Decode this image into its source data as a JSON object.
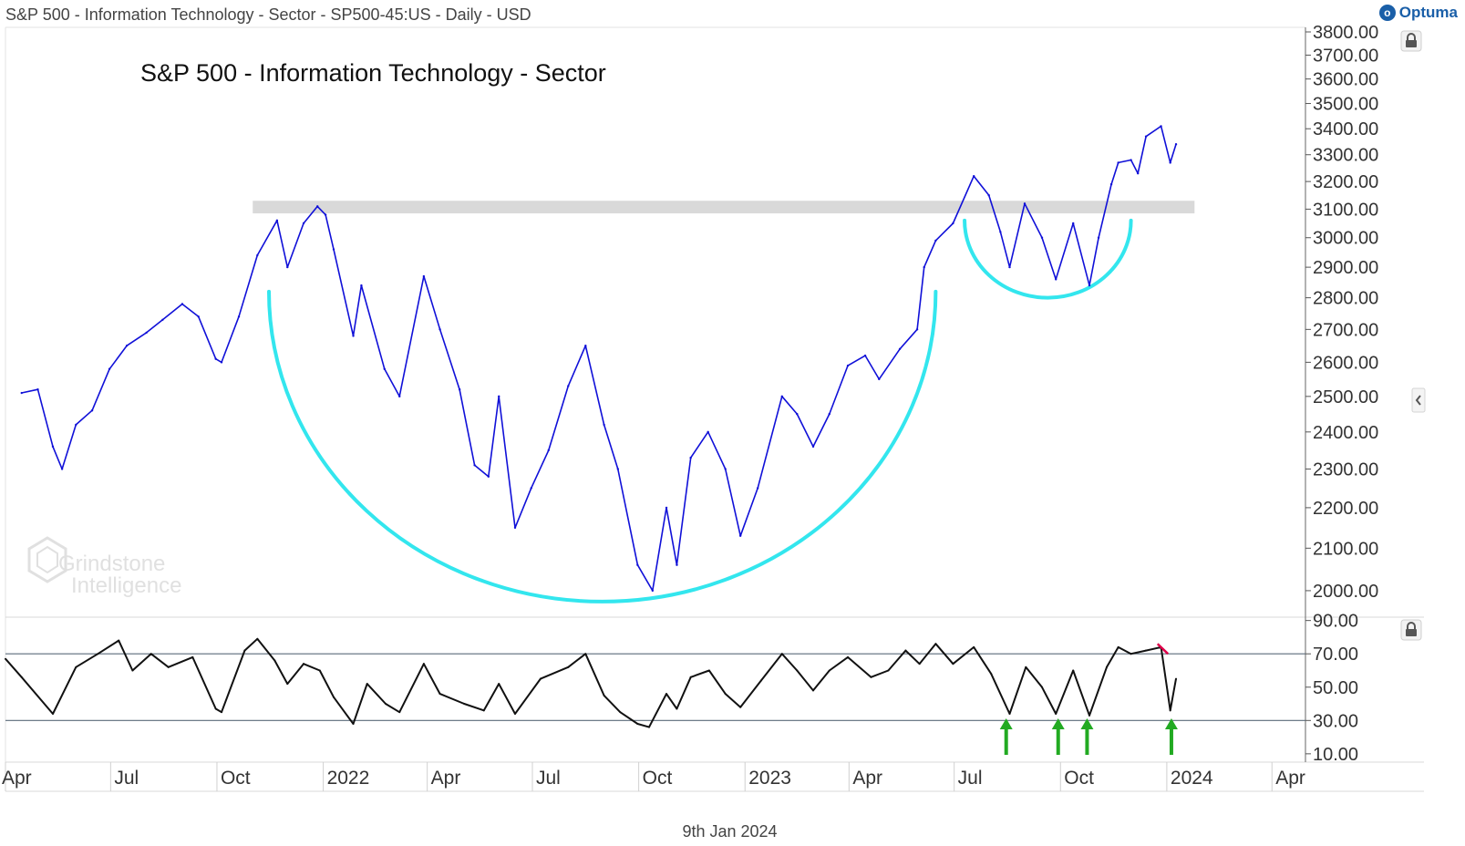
{
  "header": {
    "title": "S&P 500 - Information Technology - Sector - SP500-45:US - Daily - USD",
    "brand": "Optuma",
    "brand_logo_icon": "optuma-logo-icon"
  },
  "footer_date": "9th Jan 2024",
  "watermark": {
    "line1": "Grindstone",
    "line2": "Intelligence"
  },
  "colors": {
    "price": "#1010d8",
    "cup": "#33e6ee",
    "resistance": "#d9d9d9",
    "rsi": "#111111",
    "rsi_levels": "#5a6a7a",
    "arrows": "#22aa22",
    "divergence": "#e0004a"
  },
  "chart_data": [
    {
      "type": "line",
      "title": "S&P 500 - Information Technology - Sector",
      "series": [
        {
          "values": [
            {
              "x": "2021-04-15",
              "y": 2510
            },
            {
              "x": "2021-04-29",
              "y": 2520
            },
            {
              "x": "2021-05-12",
              "y": 2360
            },
            {
              "x": "2021-05-20",
              "y": 2300
            },
            {
              "x": "2021-06-01",
              "y": 2420
            },
            {
              "x": "2021-06-15",
              "y": 2460
            },
            {
              "x": "2021-06-30",
              "y": 2580
            },
            {
              "x": "2021-07-15",
              "y": 2650
            },
            {
              "x": "2021-08-01",
              "y": 2690
            },
            {
              "x": "2021-08-15",
              "y": 2730
            },
            {
              "x": "2021-09-01",
              "y": 2780
            },
            {
              "x": "2021-09-15",
              "y": 2740
            },
            {
              "x": "2021-09-30",
              "y": 2610
            },
            {
              "x": "2021-10-05",
              "y": 2600
            },
            {
              "x": "2021-10-20",
              "y": 2740
            },
            {
              "x": "2021-11-05",
              "y": 2940
            },
            {
              "x": "2021-11-22",
              "y": 3060
            },
            {
              "x": "2021-12-01",
              "y": 2900
            },
            {
              "x": "2021-12-15",
              "y": 3050
            },
            {
              "x": "2021-12-27",
              "y": 3110
            },
            {
              "x": "2022-01-03",
              "y": 3080
            },
            {
              "x": "2022-01-10",
              "y": 2960
            },
            {
              "x": "2022-01-27",
              "y": 2680
            },
            {
              "x": "2022-02-03",
              "y": 2840
            },
            {
              "x": "2022-02-23",
              "y": 2580
            },
            {
              "x": "2022-03-08",
              "y": 2500
            },
            {
              "x": "2022-03-29",
              "y": 2870
            },
            {
              "x": "2022-04-12",
              "y": 2700
            },
            {
              "x": "2022-04-29",
              "y": 2520
            },
            {
              "x": "2022-05-12",
              "y": 2310
            },
            {
              "x": "2022-05-24",
              "y": 2280
            },
            {
              "x": "2022-06-02",
              "y": 2500
            },
            {
              "x": "2022-06-16",
              "y": 2150
            },
            {
              "x": "2022-06-30",
              "y": 2250
            },
            {
              "x": "2022-07-15",
              "y": 2350
            },
            {
              "x": "2022-08-01",
              "y": 2530
            },
            {
              "x": "2022-08-16",
              "y": 2650
            },
            {
              "x": "2022-09-01",
              "y": 2420
            },
            {
              "x": "2022-09-13",
              "y": 2300
            },
            {
              "x": "2022-09-30",
              "y": 2060
            },
            {
              "x": "2022-10-13",
              "y": 2000
            },
            {
              "x": "2022-10-25",
              "y": 2200
            },
            {
              "x": "2022-11-03",
              "y": 2060
            },
            {
              "x": "2022-11-15",
              "y": 2330
            },
            {
              "x": "2022-11-30",
              "y": 2400
            },
            {
              "x": "2022-12-15",
              "y": 2300
            },
            {
              "x": "2022-12-28",
              "y": 2130
            },
            {
              "x": "2023-01-12",
              "y": 2250
            },
            {
              "x": "2023-02-02",
              "y": 2500
            },
            {
              "x": "2023-02-15",
              "y": 2450
            },
            {
              "x": "2023-03-01",
              "y": 2360
            },
            {
              "x": "2023-03-15",
              "y": 2450
            },
            {
              "x": "2023-03-31",
              "y": 2590
            },
            {
              "x": "2023-04-15",
              "y": 2620
            },
            {
              "x": "2023-04-27",
              "y": 2550
            },
            {
              "x": "2023-05-15",
              "y": 2640
            },
            {
              "x": "2023-05-30",
              "y": 2700
            },
            {
              "x": "2023-06-05",
              "y": 2900
            },
            {
              "x": "2023-06-15",
              "y": 2990
            },
            {
              "x": "2023-06-30",
              "y": 3050
            },
            {
              "x": "2023-07-18",
              "y": 3220
            },
            {
              "x": "2023-07-31",
              "y": 3150
            },
            {
              "x": "2023-08-10",
              "y": 3020
            },
            {
              "x": "2023-08-18",
              "y": 2900
            },
            {
              "x": "2023-08-31",
              "y": 3120
            },
            {
              "x": "2023-09-15",
              "y": 3000
            },
            {
              "x": "2023-09-27",
              "y": 2860
            },
            {
              "x": "2023-10-12",
              "y": 3050
            },
            {
              "x": "2023-10-26",
              "y": 2840
            },
            {
              "x": "2023-11-03",
              "y": 3000
            },
            {
              "x": "2023-11-14",
              "y": 3190
            },
            {
              "x": "2023-11-20",
              "y": 3270
            },
            {
              "x": "2023-12-01",
              "y": 3280
            },
            {
              "x": "2023-12-07",
              "y": 3230
            },
            {
              "x": "2023-12-14",
              "y": 3370
            },
            {
              "x": "2023-12-27",
              "y": 3410
            },
            {
              "x": "2024-01-04",
              "y": 3270
            },
            {
              "x": "2024-01-09",
              "y": 3340
            }
          ]
        }
      ],
      "x_ticks": [
        "Apr",
        "Jul",
        "Oct",
        "2022",
        "Apr",
        "Jul",
        "Oct",
        "2023",
        "Apr",
        "Jul",
        "Oct",
        "2024",
        "Apr"
      ],
      "y_ticks": [
        "3800.00",
        "3700.00",
        "3600.00",
        "3500.00",
        "3400.00",
        "3300.00",
        "3200.00",
        "3100.00",
        "3000.00",
        "2900.00",
        "2800.00",
        "2700.00",
        "2600.00",
        "2500.00",
        "2400.00",
        "2300.00",
        "2200.00",
        "2100.00",
        "2000.00"
      ],
      "y_scale": "log",
      "ylim": [
        1940,
        3820
      ],
      "xlim": [
        "2021-04-01",
        "2024-04-30"
      ],
      "grid": false,
      "annotations": {
        "resistance_band": {
          "y": [
            3085,
            3130
          ],
          "x": [
            "2021-11-01",
            "2024-01-25"
          ]
        },
        "large_cup": {
          "x": [
            "2021-11-15",
            "2023-06-15"
          ],
          "top_y": 2820,
          "bottom_y": 1975
        },
        "small_cup": {
          "x": [
            "2023-07-10",
            "2023-12-01"
          ],
          "top_y": 3060,
          "bottom_y": 2800
        }
      }
    },
    {
      "type": "line",
      "series": [
        {
          "values": [
            {
              "x": "2021-04-01",
              "y": 67
            },
            {
              "x": "2021-04-15",
              "y": 56
            },
            {
              "x": "2021-05-12",
              "y": 34
            },
            {
              "x": "2021-06-01",
              "y": 62
            },
            {
              "x": "2021-06-20",
              "y": 70
            },
            {
              "x": "2021-07-08",
              "y": 78
            },
            {
              "x": "2021-07-20",
              "y": 60
            },
            {
              "x": "2021-08-05",
              "y": 70
            },
            {
              "x": "2021-08-20",
              "y": 62
            },
            {
              "x": "2021-09-10",
              "y": 68
            },
            {
              "x": "2021-09-30",
              "y": 37
            },
            {
              "x": "2021-10-05",
              "y": 35
            },
            {
              "x": "2021-10-25",
              "y": 72
            },
            {
              "x": "2021-11-05",
              "y": 79
            },
            {
              "x": "2021-11-20",
              "y": 66
            },
            {
              "x": "2021-12-01",
              "y": 52
            },
            {
              "x": "2021-12-15",
              "y": 64
            },
            {
              "x": "2021-12-29",
              "y": 60
            },
            {
              "x": "2022-01-10",
              "y": 44
            },
            {
              "x": "2022-01-27",
              "y": 28
            },
            {
              "x": "2022-02-08",
              "y": 52
            },
            {
              "x": "2022-02-24",
              "y": 40
            },
            {
              "x": "2022-03-08",
              "y": 35
            },
            {
              "x": "2022-03-29",
              "y": 64
            },
            {
              "x": "2022-04-12",
              "y": 46
            },
            {
              "x": "2022-05-03",
              "y": 40
            },
            {
              "x": "2022-05-20",
              "y": 36
            },
            {
              "x": "2022-06-02",
              "y": 52
            },
            {
              "x": "2022-06-16",
              "y": 34
            },
            {
              "x": "2022-07-08",
              "y": 55
            },
            {
              "x": "2022-08-01",
              "y": 62
            },
            {
              "x": "2022-08-16",
              "y": 70
            },
            {
              "x": "2022-09-01",
              "y": 45
            },
            {
              "x": "2022-09-15",
              "y": 35
            },
            {
              "x": "2022-09-30",
              "y": 28
            },
            {
              "x": "2022-10-10",
              "y": 26
            },
            {
              "x": "2022-10-25",
              "y": 46
            },
            {
              "x": "2022-11-03",
              "y": 37
            },
            {
              "x": "2022-11-15",
              "y": 56
            },
            {
              "x": "2022-12-01",
              "y": 60
            },
            {
              "x": "2022-12-15",
              "y": 46
            },
            {
              "x": "2022-12-28",
              "y": 38
            },
            {
              "x": "2023-01-15",
              "y": 54
            },
            {
              "x": "2023-02-02",
              "y": 70
            },
            {
              "x": "2023-02-15",
              "y": 60
            },
            {
              "x": "2023-03-01",
              "y": 48
            },
            {
              "x": "2023-03-15",
              "y": 60
            },
            {
              "x": "2023-03-31",
              "y": 68
            },
            {
              "x": "2023-04-20",
              "y": 56
            },
            {
              "x": "2023-05-05",
              "y": 60
            },
            {
              "x": "2023-05-20",
              "y": 72
            },
            {
              "x": "2023-06-01",
              "y": 64
            },
            {
              "x": "2023-06-15",
              "y": 76
            },
            {
              "x": "2023-06-30",
              "y": 64
            },
            {
              "x": "2023-07-18",
              "y": 74
            },
            {
              "x": "2023-08-02",
              "y": 58
            },
            {
              "x": "2023-08-18",
              "y": 34
            },
            {
              "x": "2023-09-01",
              "y": 62
            },
            {
              "x": "2023-09-15",
              "y": 50
            },
            {
              "x": "2023-09-27",
              "y": 34
            },
            {
              "x": "2023-10-12",
              "y": 60
            },
            {
              "x": "2023-10-26",
              "y": 33
            },
            {
              "x": "2023-11-10",
              "y": 62
            },
            {
              "x": "2023-11-20",
              "y": 74
            },
            {
              "x": "2023-12-01",
              "y": 70
            },
            {
              "x": "2023-12-14",
              "y": 72
            },
            {
              "x": "2023-12-27",
              "y": 74
            },
            {
              "x": "2024-01-04",
              "y": 36
            },
            {
              "x": "2024-01-09",
              "y": 55
            }
          ]
        }
      ],
      "y_ticks": [
        "90.00",
        "70.00",
        "50.00",
        "30.00",
        "10.00"
      ],
      "ylim": [
        5,
        92
      ],
      "reference_lines": [
        70,
        30
      ],
      "up_arrows_at": [
        "2023-08-15",
        "2023-09-29",
        "2023-10-24",
        "2024-01-05"
      ],
      "divergence_line": {
        "x": [
          "2023-12-24",
          "2024-01-02"
        ],
        "y": [
          76,
          70
        ]
      }
    }
  ]
}
